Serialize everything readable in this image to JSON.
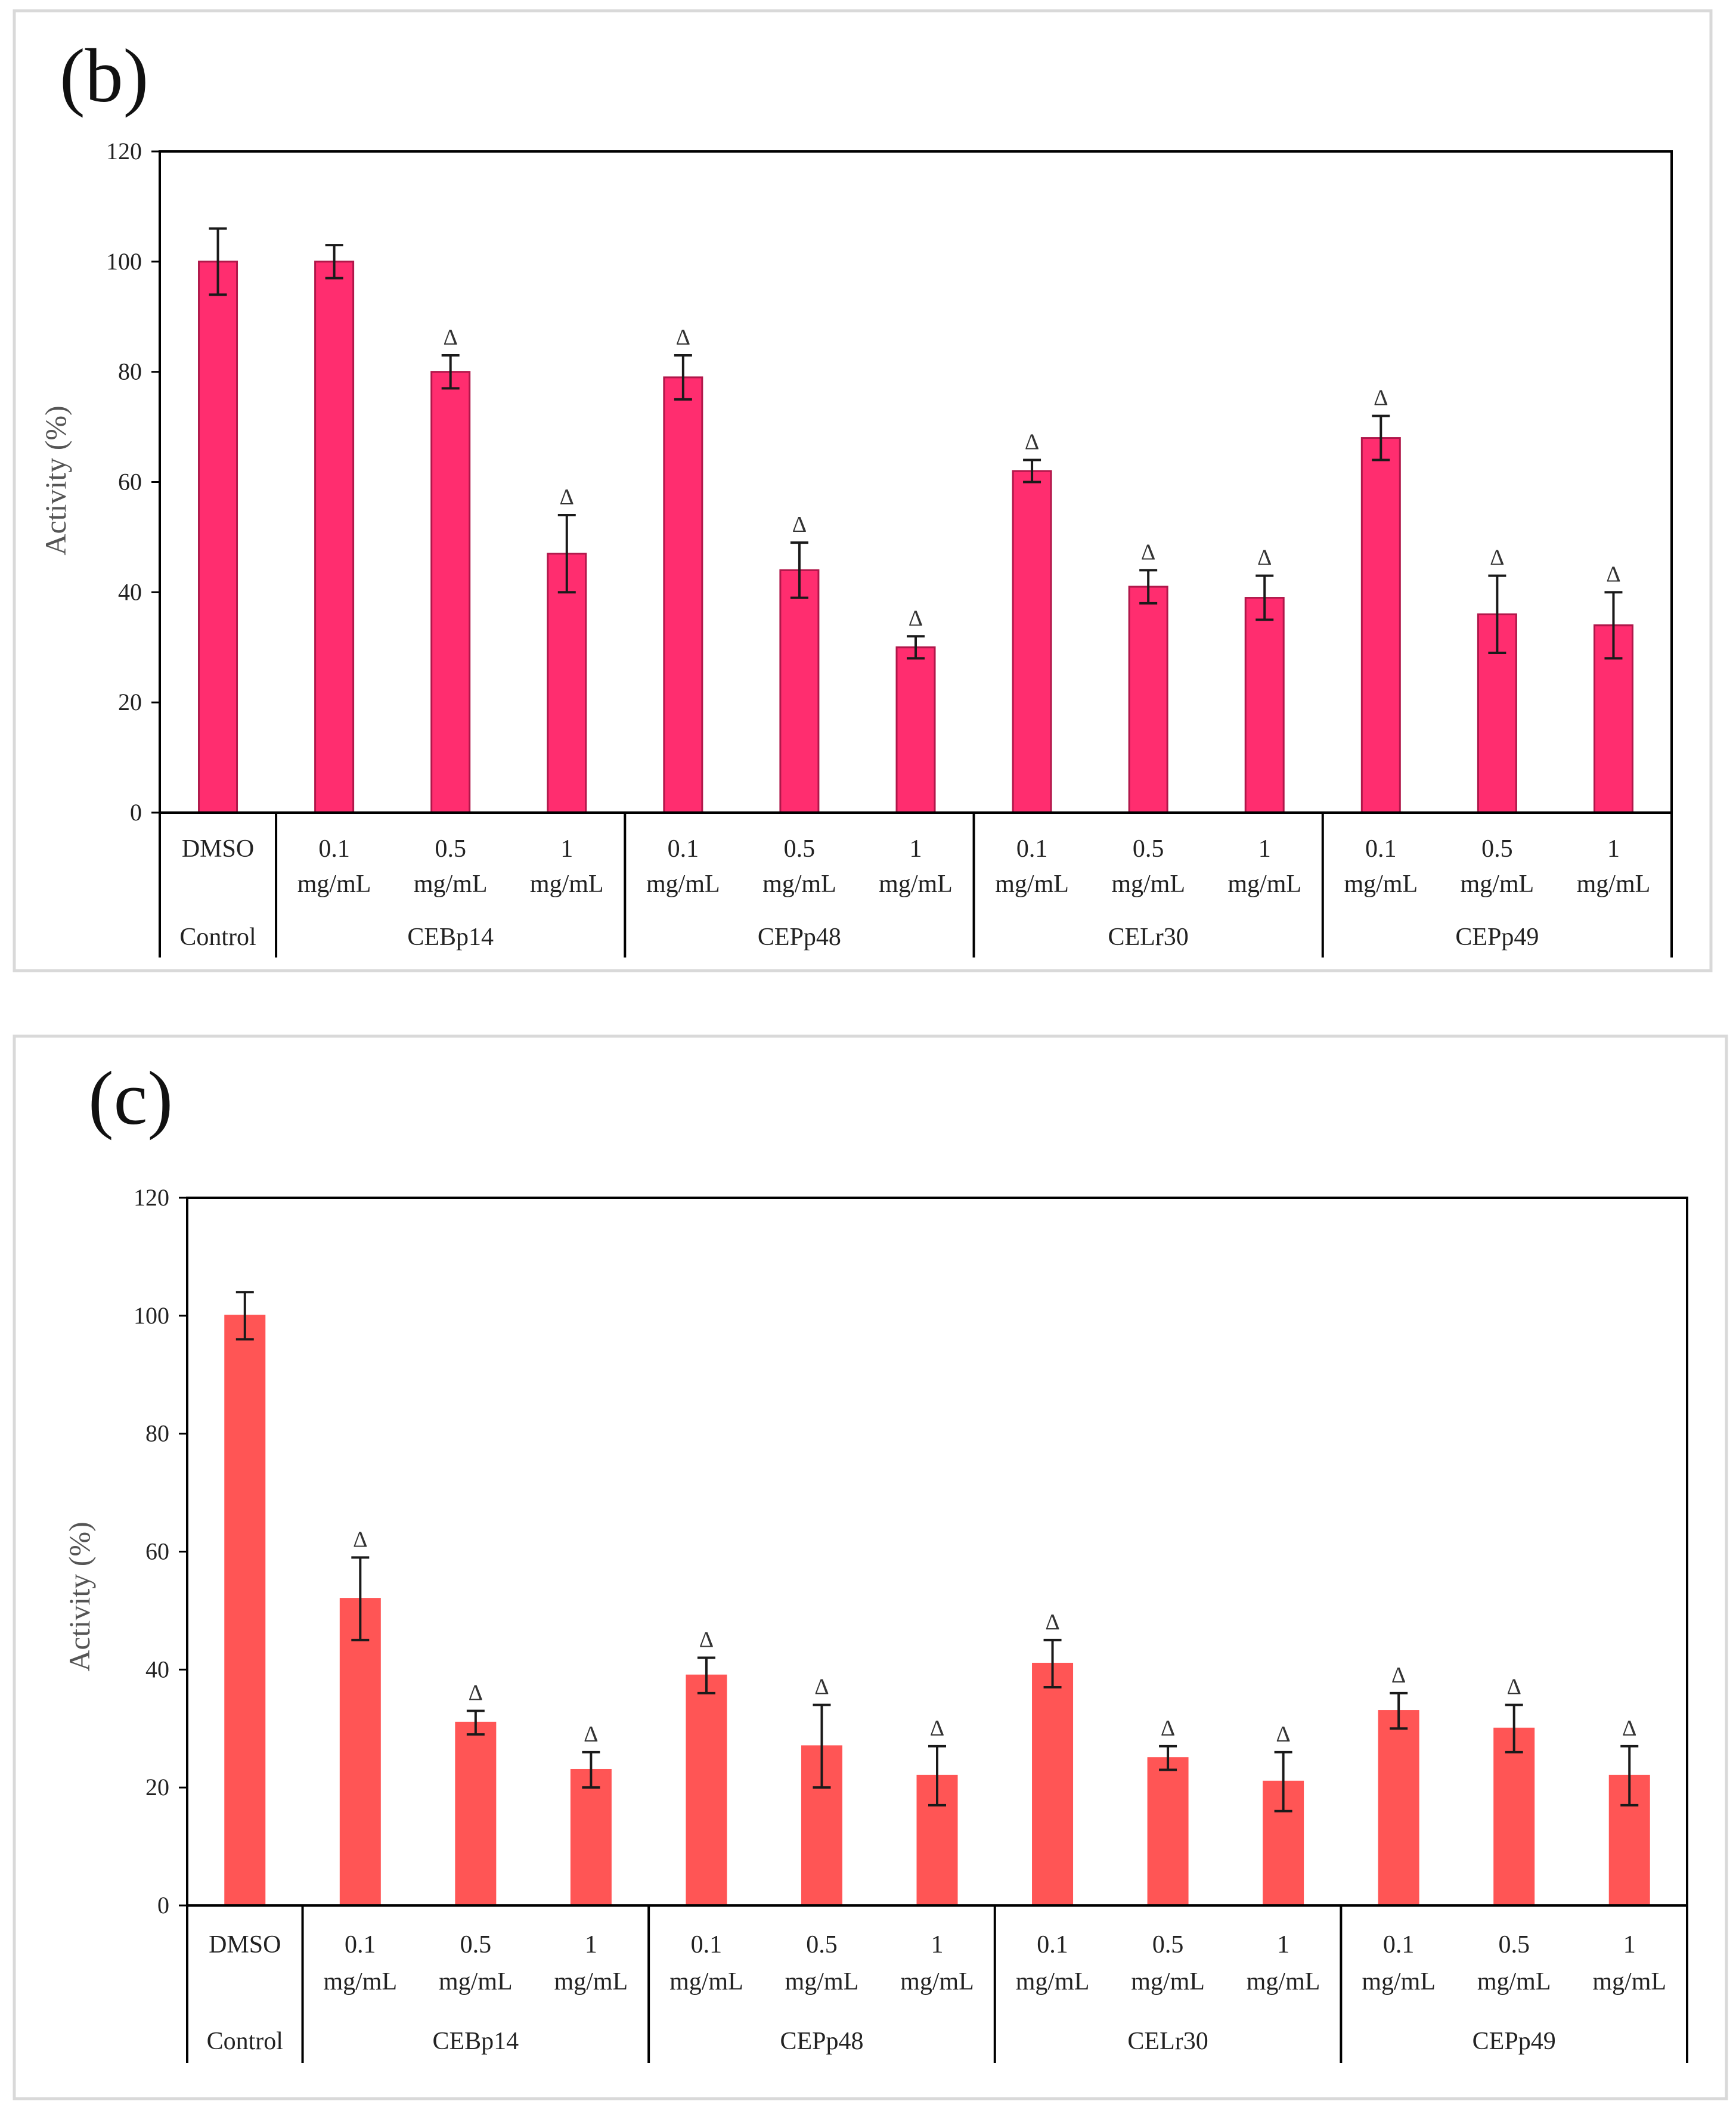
{
  "chart_data": [
    {
      "type": "bar",
      "panel_label": "(b)",
      "ylabel": "Activity (%)",
      "ylim": [
        0,
        120
      ],
      "yticks": [
        "0",
        "20",
        "40",
        "60",
        "80",
        "100",
        "120"
      ],
      "bar_color": "#ff2d6f",
      "bar_edge_color": "#b0174a",
      "significance_marker": "Δ",
      "categories": [
        {
          "line1": "DMSO",
          "line2": ""
        },
        {
          "line1": "0.1",
          "line2": "mg/mL"
        },
        {
          "line1": "0.5",
          "line2": "mg/mL"
        },
        {
          "line1": "1",
          "line2": "mg/mL"
        },
        {
          "line1": "0.1",
          "line2": "mg/mL"
        },
        {
          "line1": "0.5",
          "line2": "mg/mL"
        },
        {
          "line1": "1",
          "line2": "mg/mL"
        },
        {
          "line1": "0.1",
          "line2": "mg/mL"
        },
        {
          "line1": "0.5",
          "line2": "mg/mL"
        },
        {
          "line1": "1",
          "line2": "mg/mL"
        },
        {
          "line1": "0.1",
          "line2": "mg/mL"
        },
        {
          "line1": "0.5",
          "line2": "mg/mL"
        },
        {
          "line1": "1",
          "line2": "mg/mL"
        }
      ],
      "groups": [
        {
          "label": "Control",
          "count": 1
        },
        {
          "label": "CEBp14",
          "count": 3
        },
        {
          "label": "CEPp48",
          "count": 3
        },
        {
          "label": "CELr30",
          "count": 3
        },
        {
          "label": "CEPp49",
          "count": 3
        }
      ],
      "values": [
        100,
        100,
        80,
        47,
        79,
        44,
        30,
        62,
        41,
        39,
        68,
        36,
        34
      ],
      "errors": [
        6,
        3,
        3,
        7,
        4,
        5,
        2,
        2,
        3,
        4,
        4,
        7,
        6
      ],
      "significant": [
        false,
        false,
        true,
        true,
        true,
        true,
        true,
        true,
        true,
        true,
        true,
        true,
        true
      ]
    },
    {
      "type": "bar",
      "panel_label": "(c)",
      "ylabel": "Activity (%)",
      "ylim": [
        0,
        120
      ],
      "yticks": [
        "0",
        "20",
        "40",
        "60",
        "80",
        "100",
        "120"
      ],
      "bar_color": "#ff5555",
      "bar_edge_color": "#ff5555",
      "significance_marker": "Δ",
      "categories": [
        {
          "line1": "DMSO",
          "line2": ""
        },
        {
          "line1": "0.1",
          "line2": "mg/mL"
        },
        {
          "line1": "0.5",
          "line2": "mg/mL"
        },
        {
          "line1": "1",
          "line2": "mg/mL"
        },
        {
          "line1": "0.1",
          "line2": "mg/mL"
        },
        {
          "line1": "0.5",
          "line2": "mg/mL"
        },
        {
          "line1": "1",
          "line2": "mg/mL"
        },
        {
          "line1": "0.1",
          "line2": "mg/mL"
        },
        {
          "line1": "0.5",
          "line2": "mg/mL"
        },
        {
          "line1": "1",
          "line2": "mg/mL"
        },
        {
          "line1": "0.1",
          "line2": "mg/mL"
        },
        {
          "line1": "0.5",
          "line2": "mg/mL"
        },
        {
          "line1": "1",
          "line2": "mg/mL"
        }
      ],
      "groups": [
        {
          "label": "Control",
          "count": 1
        },
        {
          "label": "CEBp14",
          "count": 3
        },
        {
          "label": "CEPp48",
          "count": 3
        },
        {
          "label": "CELr30",
          "count": 3
        },
        {
          "label": "CEPp49",
          "count": 3
        }
      ],
      "values": [
        100,
        52,
        31,
        23,
        39,
        27,
        22,
        41,
        25,
        21,
        33,
        30,
        22
      ],
      "errors": [
        4,
        7,
        2,
        3,
        3,
        7,
        5,
        4,
        2,
        5,
        3,
        4,
        5
      ],
      "significant": [
        false,
        true,
        true,
        true,
        true,
        true,
        true,
        true,
        true,
        true,
        true,
        true,
        true
      ]
    }
  ]
}
